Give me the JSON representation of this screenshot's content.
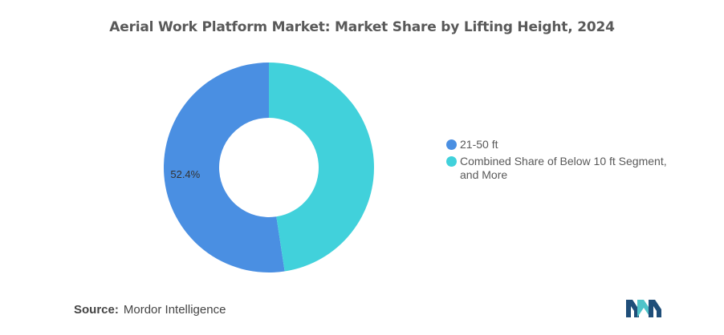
{
  "title": "Aerial Work Platform Market: Market Share by Lifting Height, 2024",
  "chart_data": {
    "type": "pie",
    "variant": "donut",
    "categories": [
      "21-50 ft",
      "Combined Share of Below 10 ft Segment, and More"
    ],
    "values": [
      52.4,
      47.6
    ],
    "colors": [
      "#4A8FE2",
      "#41D1DB"
    ],
    "data_labels": [
      "52.4%",
      ""
    ],
    "legend_position": "right"
  },
  "legend": {
    "items": [
      {
        "label": "21-50 ft",
        "color": "#4A8FE2"
      },
      {
        "label": "Combined Share of Below 10 ft Segment, and More",
        "color": "#41D1DB"
      }
    ]
  },
  "source": {
    "label": "Source:",
    "value": "Mordor Intelligence"
  },
  "logo": {
    "icon": "mordor-intelligence-logo-icon",
    "colors": [
      "#1F4E79",
      "#4FC3C9"
    ]
  }
}
